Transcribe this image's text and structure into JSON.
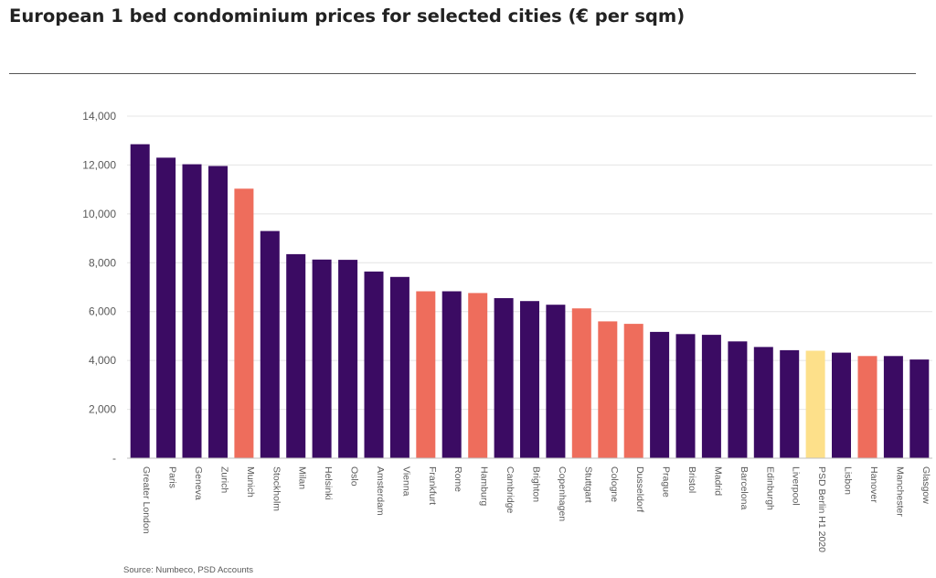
{
  "title": "European 1 bed condominium prices for selected cities (€ per sqm)",
  "source": "Source: Numbeco, PSD Accounts",
  "colors": {
    "default": "#3b0b63",
    "germany": "#ee6d5c",
    "psd": "#fde08a",
    "grid": "#e4e4e4",
    "axis_text": "#595959"
  },
  "chart_data": {
    "type": "bar",
    "title": "European 1 bed condominium prices for selected cities (€ per sqm)",
    "xlabel": "",
    "ylabel": "",
    "ylim": [
      0,
      14000
    ],
    "yticks": [
      0,
      2000,
      4000,
      6000,
      8000,
      10000,
      12000,
      14000
    ],
    "ytick_labels": [
      "-",
      "2,000",
      "4,000",
      "6,000",
      "8,000",
      "10,000",
      "12,000",
      "14,000"
    ],
    "grid": true,
    "categories": [
      "Greater London",
      "Paris",
      "Geneva",
      "Zurich",
      "Munich",
      "Stockholm",
      "Milan",
      "Helsinki",
      "Oslo",
      "Amsterdam",
      "Vienna",
      "Frankfurt",
      "Rome",
      "Hamburg",
      "Cambridge",
      "Brighton",
      "Copenhagen",
      "Stuttgart",
      "Cologne",
      "Dusseldorf",
      "Prague",
      "Bristol",
      "Madrid",
      "Barcelona",
      "Edinburgh",
      "Liverpool",
      "PSD Berlin H1 2020",
      "Lisbon",
      "Hanover",
      "Manchester",
      "Glasgow"
    ],
    "values": [
      12850,
      12300,
      12030,
      11960,
      11030,
      9300,
      8350,
      8130,
      8120,
      7640,
      7420,
      6830,
      6830,
      6760,
      6550,
      6430,
      6280,
      6130,
      5600,
      5500,
      5170,
      5080,
      5050,
      4780,
      4550,
      4420,
      4400,
      4320,
      4180,
      4180,
      4040
    ],
    "bar_color_keys": [
      "default",
      "default",
      "default",
      "default",
      "germany",
      "default",
      "default",
      "default",
      "default",
      "default",
      "default",
      "germany",
      "default",
      "germany",
      "default",
      "default",
      "default",
      "germany",
      "germany",
      "germany",
      "default",
      "default",
      "default",
      "default",
      "default",
      "default",
      "psd",
      "default",
      "germany",
      "default",
      "default"
    ]
  }
}
